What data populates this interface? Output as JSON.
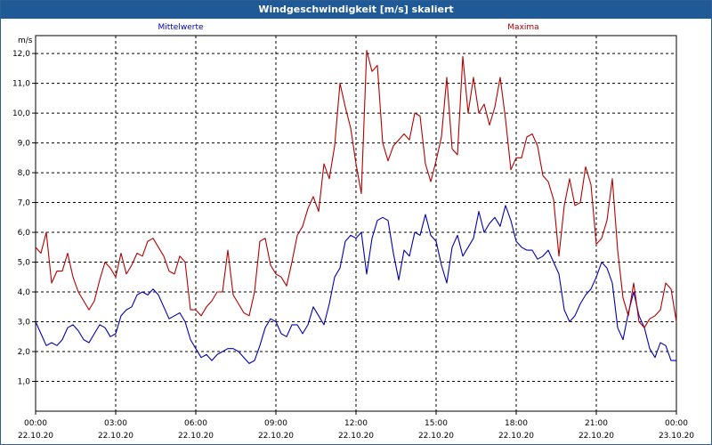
{
  "window": {
    "title": "Windgeschwindigkeit [m/s] skaliert"
  },
  "chart_data": {
    "type": "line",
    "title": "Windgeschwindigkeit [m/s] skaliert",
    "ylabel": "m/s",
    "xlabel": "",
    "ylim": [
      0,
      12.6
    ],
    "xlim": [
      0,
      24
    ],
    "grid": true,
    "legend": "top",
    "y_ticks": [
      "1,0",
      "2,0",
      "3,0",
      "4,0",
      "5,0",
      "6,0",
      "7,0",
      "8,0",
      "9,0",
      "10,0",
      "11,0",
      "12,0"
    ],
    "x_ticks": [
      {
        "time": "00:00",
        "date": "22.10.20"
      },
      {
        "time": "03:00",
        "date": "22.10.20"
      },
      {
        "time": "06:00",
        "date": "22.10.20"
      },
      {
        "time": "09:00",
        "date": "22.10.20"
      },
      {
        "time": "12:00",
        "date": "22.10.20"
      },
      {
        "time": "15:00",
        "date": "22.10.20"
      },
      {
        "time": "18:00",
        "date": "22.10.20"
      },
      {
        "time": "21:00",
        "date": "22.10.20"
      },
      {
        "time": "00:00",
        "date": "23.10.20"
      }
    ],
    "series": [
      {
        "name": "Mittelwerte",
        "color": "#0000b4",
        "points": [
          [
            0.0,
            3.0
          ],
          [
            0.2,
            2.6
          ],
          [
            0.4,
            2.2
          ],
          [
            0.6,
            2.3
          ],
          [
            0.8,
            2.2
          ],
          [
            1.0,
            2.4
          ],
          [
            1.2,
            2.8
          ],
          [
            1.4,
            2.9
          ],
          [
            1.6,
            2.7
          ],
          [
            1.8,
            2.4
          ],
          [
            2.0,
            2.3
          ],
          [
            2.2,
            2.6
          ],
          [
            2.4,
            2.9
          ],
          [
            2.6,
            2.8
          ],
          [
            2.8,
            2.5
          ],
          [
            3.0,
            2.6
          ],
          [
            3.2,
            3.2
          ],
          [
            3.4,
            3.4
          ],
          [
            3.6,
            3.5
          ],
          [
            3.8,
            3.9
          ],
          [
            4.0,
            4.0
          ],
          [
            4.2,
            3.9
          ],
          [
            4.4,
            4.1
          ],
          [
            4.6,
            3.9
          ],
          [
            4.8,
            3.5
          ],
          [
            5.0,
            3.1
          ],
          [
            5.2,
            3.2
          ],
          [
            5.4,
            3.3
          ],
          [
            5.6,
            3.0
          ],
          [
            5.8,
            2.4
          ],
          [
            6.0,
            2.1
          ],
          [
            6.2,
            1.8
          ],
          [
            6.4,
            1.9
          ],
          [
            6.6,
            1.7
          ],
          [
            6.8,
            1.9
          ],
          [
            7.0,
            2.0
          ],
          [
            7.2,
            2.1
          ],
          [
            7.4,
            2.1
          ],
          [
            7.6,
            2.0
          ],
          [
            7.8,
            1.8
          ],
          [
            8.0,
            1.6
          ],
          [
            8.2,
            1.7
          ],
          [
            8.4,
            2.2
          ],
          [
            8.6,
            2.8
          ],
          [
            8.8,
            3.1
          ],
          [
            9.0,
            3.0
          ],
          [
            9.2,
            2.6
          ],
          [
            9.4,
            2.5
          ],
          [
            9.6,
            2.9
          ],
          [
            9.8,
            2.9
          ],
          [
            10.0,
            2.6
          ],
          [
            10.2,
            2.9
          ],
          [
            10.4,
            3.5
          ],
          [
            10.6,
            3.2
          ],
          [
            10.8,
            2.9
          ],
          [
            11.0,
            3.6
          ],
          [
            11.2,
            4.5
          ],
          [
            11.4,
            4.8
          ],
          [
            11.6,
            5.7
          ],
          [
            11.8,
            5.9
          ],
          [
            12.0,
            5.8
          ],
          [
            12.2,
            6.0
          ],
          [
            12.4,
            4.6
          ],
          [
            12.6,
            5.8
          ],
          [
            12.8,
            6.4
          ],
          [
            13.0,
            6.5
          ],
          [
            13.2,
            6.4
          ],
          [
            13.4,
            5.3
          ],
          [
            13.6,
            4.4
          ],
          [
            13.8,
            5.4
          ],
          [
            14.0,
            5.2
          ],
          [
            14.2,
            6.0
          ],
          [
            14.4,
            5.9
          ],
          [
            14.6,
            6.6
          ],
          [
            14.8,
            5.9
          ],
          [
            15.0,
            5.7
          ],
          [
            15.2,
            4.9
          ],
          [
            15.4,
            4.3
          ],
          [
            15.6,
            5.5
          ],
          [
            15.8,
            5.9
          ],
          [
            16.0,
            5.2
          ],
          [
            16.2,
            5.5
          ],
          [
            16.4,
            5.8
          ],
          [
            16.6,
            6.7
          ],
          [
            16.8,
            6.0
          ],
          [
            17.0,
            6.3
          ],
          [
            17.2,
            6.5
          ],
          [
            17.4,
            6.2
          ],
          [
            17.6,
            6.9
          ],
          [
            17.8,
            6.4
          ],
          [
            18.0,
            5.7
          ],
          [
            18.2,
            5.5
          ],
          [
            18.4,
            5.4
          ],
          [
            18.6,
            5.4
          ],
          [
            18.8,
            5.1
          ],
          [
            19.0,
            5.2
          ],
          [
            19.2,
            5.4
          ],
          [
            19.4,
            5.0
          ],
          [
            19.6,
            4.6
          ],
          [
            19.8,
            3.4
          ],
          [
            20.0,
            3.0
          ],
          [
            20.2,
            3.2
          ],
          [
            20.4,
            3.6
          ],
          [
            20.6,
            3.9
          ],
          [
            20.8,
            4.1
          ],
          [
            21.0,
            4.5
          ],
          [
            21.2,
            5.0
          ],
          [
            21.4,
            4.8
          ],
          [
            21.6,
            4.3
          ],
          [
            21.8,
            2.8
          ],
          [
            22.0,
            2.4
          ],
          [
            22.2,
            3.3
          ],
          [
            22.4,
            4.0
          ],
          [
            22.6,
            3.2
          ],
          [
            22.8,
            2.8
          ],
          [
            23.0,
            2.1
          ],
          [
            23.2,
            1.8
          ],
          [
            23.4,
            2.3
          ],
          [
            23.6,
            2.2
          ],
          [
            23.8,
            1.7
          ],
          [
            24.0,
            1.7
          ]
        ]
      },
      {
        "name": "Maxima",
        "color": "#b40000",
        "points": [
          [
            0.0,
            5.5
          ],
          [
            0.2,
            5.3
          ],
          [
            0.4,
            6.0
          ],
          [
            0.6,
            4.3
          ],
          [
            0.8,
            4.7
          ],
          [
            1.0,
            4.7
          ],
          [
            1.2,
            5.3
          ],
          [
            1.4,
            4.5
          ],
          [
            1.6,
            4.0
          ],
          [
            1.8,
            3.7
          ],
          [
            2.0,
            3.4
          ],
          [
            2.2,
            3.7
          ],
          [
            2.4,
            4.4
          ],
          [
            2.6,
            5.0
          ],
          [
            2.8,
            4.8
          ],
          [
            3.0,
            4.5
          ],
          [
            3.2,
            5.3
          ],
          [
            3.4,
            4.6
          ],
          [
            3.6,
            4.9
          ],
          [
            3.8,
            5.3
          ],
          [
            4.0,
            5.2
          ],
          [
            4.2,
            5.7
          ],
          [
            4.4,
            5.8
          ],
          [
            4.6,
            5.5
          ],
          [
            4.8,
            5.2
          ],
          [
            5.0,
            4.7
          ],
          [
            5.2,
            4.6
          ],
          [
            5.4,
            5.2
          ],
          [
            5.6,
            5.0
          ],
          [
            5.8,
            3.4
          ],
          [
            6.0,
            3.4
          ],
          [
            6.2,
            3.2
          ],
          [
            6.4,
            3.5
          ],
          [
            6.6,
            3.7
          ],
          [
            6.8,
            4.0
          ],
          [
            7.0,
            4.0
          ],
          [
            7.2,
            5.4
          ],
          [
            7.4,
            3.9
          ],
          [
            7.6,
            3.6
          ],
          [
            7.8,
            3.3
          ],
          [
            8.0,
            3.2
          ],
          [
            8.2,
            4.0
          ],
          [
            8.4,
            5.7
          ],
          [
            8.6,
            5.8
          ],
          [
            8.8,
            4.9
          ],
          [
            9.0,
            4.6
          ],
          [
            9.2,
            4.5
          ],
          [
            9.4,
            4.2
          ],
          [
            9.6,
            5.0
          ],
          [
            9.8,
            5.9
          ],
          [
            10.0,
            6.2
          ],
          [
            10.2,
            6.8
          ],
          [
            10.4,
            7.2
          ],
          [
            10.6,
            6.7
          ],
          [
            10.8,
            8.3
          ],
          [
            11.0,
            7.8
          ],
          [
            11.2,
            8.9
          ],
          [
            11.4,
            11.0
          ],
          [
            11.6,
            10.2
          ],
          [
            11.8,
            9.5
          ],
          [
            12.0,
            8.3
          ],
          [
            12.2,
            7.3
          ],
          [
            12.4,
            12.1
          ],
          [
            12.6,
            11.4
          ],
          [
            12.8,
            11.6
          ],
          [
            13.0,
            9.0
          ],
          [
            13.2,
            8.4
          ],
          [
            13.4,
            8.9
          ],
          [
            13.6,
            9.1
          ],
          [
            13.8,
            9.3
          ],
          [
            14.0,
            9.1
          ],
          [
            14.2,
            10.0
          ],
          [
            14.4,
            9.9
          ],
          [
            14.6,
            8.3
          ],
          [
            14.8,
            7.7
          ],
          [
            15.0,
            8.4
          ],
          [
            15.2,
            9.2
          ],
          [
            15.4,
            11.2
          ],
          [
            15.6,
            8.8
          ],
          [
            15.8,
            8.6
          ],
          [
            16.0,
            11.9
          ],
          [
            16.2,
            10.0
          ],
          [
            16.4,
            11.2
          ],
          [
            16.6,
            10.0
          ],
          [
            16.8,
            10.3
          ],
          [
            17.0,
            9.6
          ],
          [
            17.2,
            10.2
          ],
          [
            17.4,
            11.2
          ],
          [
            17.6,
            9.8
          ],
          [
            17.8,
            8.1
          ],
          [
            18.0,
            8.5
          ],
          [
            18.2,
            8.5
          ],
          [
            18.4,
            9.2
          ],
          [
            18.6,
            9.3
          ],
          [
            18.8,
            8.9
          ],
          [
            19.0,
            7.9
          ],
          [
            19.2,
            7.7
          ],
          [
            19.4,
            7.1
          ],
          [
            19.6,
            5.2
          ],
          [
            19.8,
            6.9
          ],
          [
            20.0,
            7.8
          ],
          [
            20.2,
            6.9
          ],
          [
            20.4,
            7.0
          ],
          [
            20.6,
            8.2
          ],
          [
            20.8,
            7.6
          ],
          [
            21.0,
            5.6
          ],
          [
            21.2,
            5.8
          ],
          [
            21.4,
            6.4
          ],
          [
            21.6,
            7.8
          ],
          [
            21.8,
            5.4
          ],
          [
            22.0,
            3.8
          ],
          [
            22.2,
            3.2
          ],
          [
            22.4,
            4.3
          ],
          [
            22.6,
            3.0
          ],
          [
            22.8,
            2.8
          ],
          [
            23.0,
            3.1
          ],
          [
            23.2,
            3.2
          ],
          [
            23.4,
            3.4
          ],
          [
            23.6,
            4.3
          ],
          [
            23.8,
            4.1
          ],
          [
            24.0,
            3.0
          ]
        ]
      }
    ]
  }
}
